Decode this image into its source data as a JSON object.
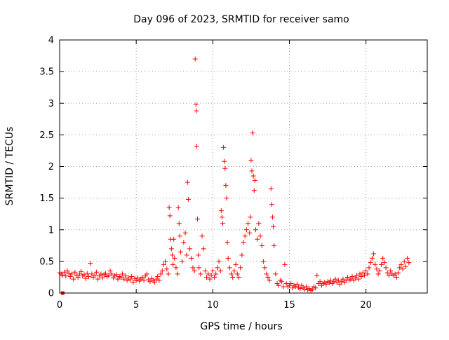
{
  "chart_data": {
    "type": "scatter",
    "title": "Day 096 of 2023, SRMTID for receiver samo",
    "xlabel": "GPS time / hours",
    "ylabel": "SRMTID / TECUs",
    "xlim": [
      0,
      24
    ],
    "ylim": [
      0,
      4
    ],
    "xticks": [
      0,
      5,
      10,
      15,
      20
    ],
    "xtick_labels": [
      "0",
      "5",
      "10",
      "15",
      "20"
    ],
    "yticks": [
      0,
      0.5,
      1,
      1.5,
      2,
      2.5,
      3,
      3.5,
      4
    ],
    "ytick_labels": [
      "0",
      "0.5",
      "1",
      "1.5",
      "2",
      "2.5",
      "3",
      "3.5",
      "4"
    ],
    "grid": true,
    "marker": "+",
    "color": "#ff0000",
    "series": [
      {
        "name": "SRMTID",
        "points": [
          [
            0.0,
            0.32
          ],
          [
            0.1,
            0.3
          ],
          [
            0.2,
            0.28
          ],
          [
            0.3,
            0.33
          ],
          [
            0.4,
            0.27
          ],
          [
            0.5,
            0.35
          ],
          [
            0.6,
            0.31
          ],
          [
            0.7,
            0.26
          ],
          [
            0.8,
            0.3
          ],
          [
            0.9,
            0.22
          ],
          [
            1.0,
            0.33
          ],
          [
            1.1,
            0.28
          ],
          [
            1.2,
            0.25
          ],
          [
            1.3,
            0.3
          ],
          [
            1.4,
            0.34
          ],
          [
            1.5,
            0.27
          ],
          [
            1.6,
            0.29
          ],
          [
            1.7,
            0.23
          ],
          [
            1.8,
            0.31
          ],
          [
            1.9,
            0.26
          ],
          [
            2.0,
            0.47
          ],
          [
            2.1,
            0.3
          ],
          [
            2.2,
            0.25
          ],
          [
            2.3,
            0.28
          ],
          [
            2.4,
            0.33
          ],
          [
            2.5,
            0.22
          ],
          [
            2.6,
            0.27
          ],
          [
            2.7,
            0.3
          ],
          [
            2.8,
            0.24
          ],
          [
            2.9,
            0.29
          ],
          [
            3.0,
            0.31
          ],
          [
            3.1,
            0.26
          ],
          [
            3.2,
            0.28
          ],
          [
            3.3,
            0.35
          ],
          [
            3.4,
            0.3
          ],
          [
            3.5,
            0.24
          ],
          [
            3.6,
            0.27
          ],
          [
            3.7,
            0.29
          ],
          [
            3.8,
            0.22
          ],
          [
            3.9,
            0.26
          ],
          [
            4.0,
            0.25
          ],
          [
            4.1,
            0.3
          ],
          [
            4.2,
            0.22
          ],
          [
            4.3,
            0.27
          ],
          [
            4.4,
            0.2
          ],
          [
            4.5,
            0.24
          ],
          [
            4.6,
            0.21
          ],
          [
            4.7,
            0.26
          ],
          [
            4.8,
            0.17
          ],
          [
            4.9,
            0.23
          ],
          [
            5.0,
            0.2
          ],
          [
            5.1,
            0.24
          ],
          [
            5.2,
            0.19
          ],
          [
            5.3,
            0.22
          ],
          [
            5.4,
            0.25
          ],
          [
            5.5,
            0.2
          ],
          [
            5.6,
            0.27
          ],
          [
            5.7,
            0.3
          ],
          [
            5.8,
            0.21
          ],
          [
            5.9,
            0.18
          ],
          [
            6.0,
            0.23
          ],
          [
            6.1,
            0.2
          ],
          [
            6.2,
            0.17
          ],
          [
            6.3,
            0.22
          ],
          [
            6.4,
            0.26
          ],
          [
            6.5,
            0.2
          ],
          [
            6.6,
            0.3
          ],
          [
            6.7,
            0.35
          ],
          [
            6.8,
            0.45
          ],
          [
            6.9,
            0.5
          ],
          [
            7.0,
            0.38
          ],
          [
            7.1,
            0.3
          ],
          [
            7.15,
            1.35
          ],
          [
            7.2,
            1.22
          ],
          [
            7.25,
            0.85
          ],
          [
            7.3,
            0.7
          ],
          [
            7.35,
            0.6
          ],
          [
            7.4,
            0.45
          ],
          [
            7.45,
            0.85
          ],
          [
            7.5,
            0.55
          ],
          [
            7.6,
            0.4
          ],
          [
            7.7,
            0.3
          ],
          [
            7.75,
            1.35
          ],
          [
            7.8,
            1.1
          ],
          [
            7.85,
            0.9
          ],
          [
            7.9,
            0.65
          ],
          [
            8.0,
            0.5
          ],
          [
            8.1,
            0.8
          ],
          [
            8.2,
            0.95
          ],
          [
            8.3,
            0.6
          ],
          [
            8.35,
            1.75
          ],
          [
            8.4,
            1.48
          ],
          [
            8.5,
            0.7
          ],
          [
            8.6,
            0.55
          ],
          [
            8.7,
            0.4
          ],
          [
            8.8,
            0.35
          ],
          [
            8.85,
            3.7
          ],
          [
            8.9,
            2.98
          ],
          [
            8.93,
            2.88
          ],
          [
            8.95,
            2.32
          ],
          [
            9.0,
            1.17
          ],
          [
            9.05,
            0.6
          ],
          [
            9.1,
            0.4
          ],
          [
            9.2,
            0.3
          ],
          [
            9.3,
            0.9
          ],
          [
            9.4,
            0.7
          ],
          [
            9.5,
            0.35
          ],
          [
            9.6,
            0.25
          ],
          [
            9.7,
            0.3
          ],
          [
            9.8,
            0.22
          ],
          [
            9.9,
            0.28
          ],
          [
            10.0,
            0.35
          ],
          [
            10.1,
            0.25
          ],
          [
            10.2,
            0.3
          ],
          [
            10.3,
            0.4
          ],
          [
            10.4,
            0.5
          ],
          [
            10.5,
            0.35
          ],
          [
            10.55,
            1.3
          ],
          [
            10.6,
            1.2
          ],
          [
            10.65,
            1.1
          ],
          [
            10.7,
            2.3
          ],
          [
            10.75,
            2.08
          ],
          [
            10.8,
            1.97
          ],
          [
            10.85,
            1.7
          ],
          [
            10.9,
            1.5
          ],
          [
            10.95,
            0.8
          ],
          [
            11.0,
            0.55
          ],
          [
            11.1,
            0.4
          ],
          [
            11.2,
            0.3
          ],
          [
            11.3,
            0.25
          ],
          [
            11.4,
            0.35
          ],
          [
            11.5,
            0.45
          ],
          [
            11.6,
            0.3
          ],
          [
            11.7,
            0.25
          ],
          [
            11.8,
            0.4
          ],
          [
            11.9,
            0.6
          ],
          [
            12.0,
            0.8
          ],
          [
            12.1,
            0.9
          ],
          [
            12.2,
            1.0
          ],
          [
            12.3,
            1.1
          ],
          [
            12.4,
            0.95
          ],
          [
            12.45,
            1.2
          ],
          [
            12.5,
            2.1
          ],
          [
            12.55,
            1.93
          ],
          [
            12.6,
            2.53
          ],
          [
            12.65,
            1.85
          ],
          [
            12.7,
            1.62
          ],
          [
            12.75,
            1.78
          ],
          [
            12.8,
            1.0
          ],
          [
            12.9,
            0.85
          ],
          [
            13.0,
            1.1
          ],
          [
            13.1,
            0.9
          ],
          [
            13.2,
            0.75
          ],
          [
            13.3,
            0.5
          ],
          [
            13.4,
            0.4
          ],
          [
            13.5,
            0.3
          ],
          [
            13.6,
            0.25
          ],
          [
            13.7,
            0.2
          ],
          [
            13.8,
            1.65
          ],
          [
            13.85,
            1.4
          ],
          [
            13.9,
            1.2
          ],
          [
            13.95,
            1.05
          ],
          [
            14.0,
            0.75
          ],
          [
            14.1,
            0.3
          ],
          [
            14.2,
            0.15
          ],
          [
            14.3,
            0.12
          ],
          [
            14.4,
            0.2
          ],
          [
            14.5,
            0.18
          ],
          [
            14.6,
            0.1
          ],
          [
            14.7,
            0.45
          ],
          [
            14.8,
            0.15
          ],
          [
            14.9,
            0.1
          ],
          [
            15.0,
            0.12
          ],
          [
            15.1,
            0.15
          ],
          [
            15.2,
            0.08
          ],
          [
            15.3,
            0.12
          ],
          [
            15.4,
            0.1
          ],
          [
            15.5,
            0.14
          ],
          [
            15.6,
            0.09
          ],
          [
            15.7,
            0.07
          ],
          [
            15.8,
            0.12
          ],
          [
            15.9,
            0.08
          ],
          [
            16.0,
            0.06
          ],
          [
            16.1,
            0.1
          ],
          [
            16.2,
            0.05
          ],
          [
            16.3,
            0.07
          ],
          [
            16.4,
            0.04
          ],
          [
            16.5,
            0.06
          ],
          [
            16.6,
            0.1
          ],
          [
            16.7,
            0.08
          ],
          [
            16.8,
            0.28
          ],
          [
            16.9,
            0.15
          ],
          [
            17.0,
            0.18
          ],
          [
            17.1,
            0.12
          ],
          [
            17.2,
            0.15
          ],
          [
            17.3,
            0.17
          ],
          [
            17.4,
            0.14
          ],
          [
            17.5,
            0.18
          ],
          [
            17.6,
            0.16
          ],
          [
            17.7,
            0.2
          ],
          [
            17.8,
            0.15
          ],
          [
            17.9,
            0.18
          ],
          [
            18.0,
            0.22
          ],
          [
            18.1,
            0.17
          ],
          [
            18.2,
            0.2
          ],
          [
            18.3,
            0.14
          ],
          [
            18.4,
            0.18
          ],
          [
            18.5,
            0.22
          ],
          [
            18.6,
            0.17
          ],
          [
            18.7,
            0.2
          ],
          [
            18.8,
            0.25
          ],
          [
            18.9,
            0.2
          ],
          [
            19.0,
            0.22
          ],
          [
            19.1,
            0.26
          ],
          [
            19.2,
            0.2
          ],
          [
            19.3,
            0.24
          ],
          [
            19.4,
            0.28
          ],
          [
            19.5,
            0.22
          ],
          [
            19.6,
            0.3
          ],
          [
            19.7,
            0.26
          ],
          [
            19.8,
            0.32
          ],
          [
            19.9,
            0.28
          ],
          [
            20.0,
            0.35
          ],
          [
            20.1,
            0.3
          ],
          [
            20.2,
            0.4
          ],
          [
            20.3,
            0.48
          ],
          [
            20.4,
            0.55
          ],
          [
            20.5,
            0.62
          ],
          [
            20.6,
            0.45
          ],
          [
            20.7,
            0.38
          ],
          [
            20.8,
            0.3
          ],
          [
            20.9,
            0.35
          ],
          [
            21.0,
            0.45
          ],
          [
            21.1,
            0.55
          ],
          [
            21.2,
            0.48
          ],
          [
            21.3,
            0.4
          ],
          [
            21.4,
            0.32
          ],
          [
            21.5,
            0.28
          ],
          [
            21.6,
            0.35
          ],
          [
            21.7,
            0.3
          ],
          [
            21.8,
            0.28
          ],
          [
            21.9,
            0.3
          ],
          [
            22.0,
            0.25
          ],
          [
            22.1,
            0.32
          ],
          [
            22.2,
            0.4
          ],
          [
            22.3,
            0.45
          ],
          [
            22.4,
            0.38
          ],
          [
            22.5,
            0.5
          ],
          [
            22.6,
            0.42
          ],
          [
            22.7,
            0.55
          ],
          [
            22.8,
            0.48
          ]
        ],
        "outlier_marker_points": [
          [
            0.2,
            0.0
          ]
        ]
      }
    ]
  }
}
